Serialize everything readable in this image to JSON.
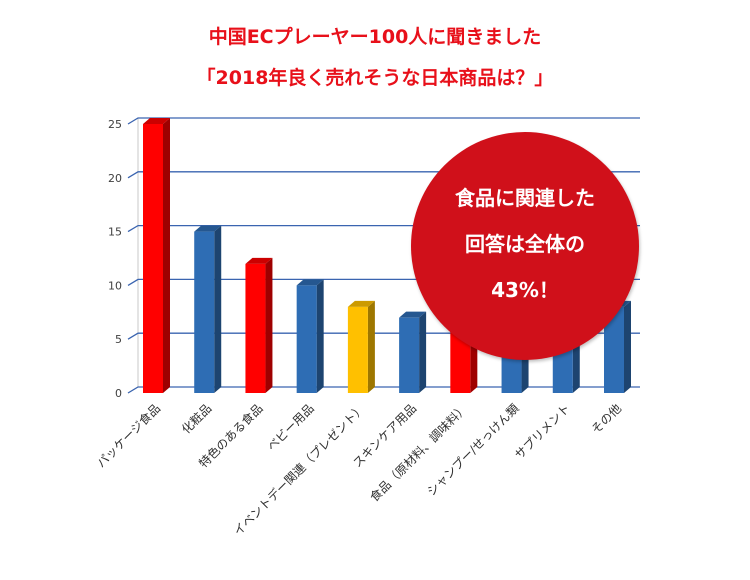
{
  "title_line1": "中国ECプレーヤー100人に聞きました",
  "title_line2": "「2018年良く売れそうな日本商品は？」",
  "callout": {
    "line1": "食品に関連した",
    "line2": "回答は全体の",
    "line3": "43%！",
    "color": "#d0101a"
  },
  "chart_data": {
    "type": "bar",
    "title": "",
    "xlabel": "",
    "ylabel": "",
    "ylim": [
      0,
      25
    ],
    "yticks": [
      0,
      5,
      10,
      15,
      20,
      25
    ],
    "grid": true,
    "categories": [
      "パッケージ食品",
      "化粧品",
      "特色のある食品",
      "ベビー用品",
      "イベントデー関連（プレゼント）",
      "スキンケア用品",
      "食品（原材料、調味料）",
      "シャンプー/せっけん類",
      "サプリメント",
      "その他"
    ],
    "values": [
      25,
      15,
      12,
      10,
      8,
      7,
      6,
      4,
      5,
      8
    ],
    "bar_colors": [
      "#ff0000",
      "#2e6db4",
      "#ff0000",
      "#2e6db4",
      "#ffc000",
      "#2e6db4",
      "#ff0000",
      "#2e6db4",
      "#2e6db4",
      "#2e6db4"
    ]
  }
}
